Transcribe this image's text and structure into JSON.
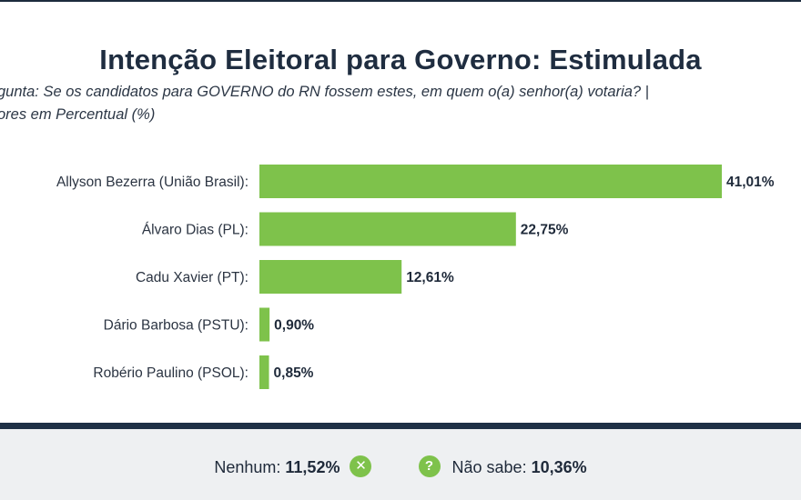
{
  "title": "Intenção Eleitoral para Governo: Estimulada",
  "subtitle_line1": "gunta: Se os candidatos para GOVERNO do RN fossem estes, em quem o(a) senhor(a) votaria? |",
  "subtitle_line2": "ores em Percentual (%)",
  "colors": {
    "bar": "#7ec24b",
    "dark": "#1e3045",
    "footer_bg": "#eef0f2"
  },
  "chart_data": {
    "type": "bar",
    "orientation": "horizontal",
    "categories": [
      "Allyson Bezerra (União Brasil):",
      "Álvaro Dias (PL):",
      "Cadu Xavier (PT):",
      "Dário Barbosa (PSTU):",
      "Robério Paulino (PSOL):"
    ],
    "values": [
      41.01,
      22.75,
      12.61,
      0.9,
      0.85
    ],
    "value_labels": [
      "41,01%",
      "22,75%",
      "12,61%",
      "0,90%",
      "0,85%"
    ],
    "xlim": [
      0,
      41.01
    ],
    "grid": false,
    "legend": "none"
  },
  "footer": {
    "none_label": "Nenhum:",
    "none_value": "11,52%",
    "none_icon": "x-circle-icon",
    "dontknow_label": "Não sabe:",
    "dontknow_value": "10,36%",
    "dontknow_icon": "question-circle-icon"
  }
}
